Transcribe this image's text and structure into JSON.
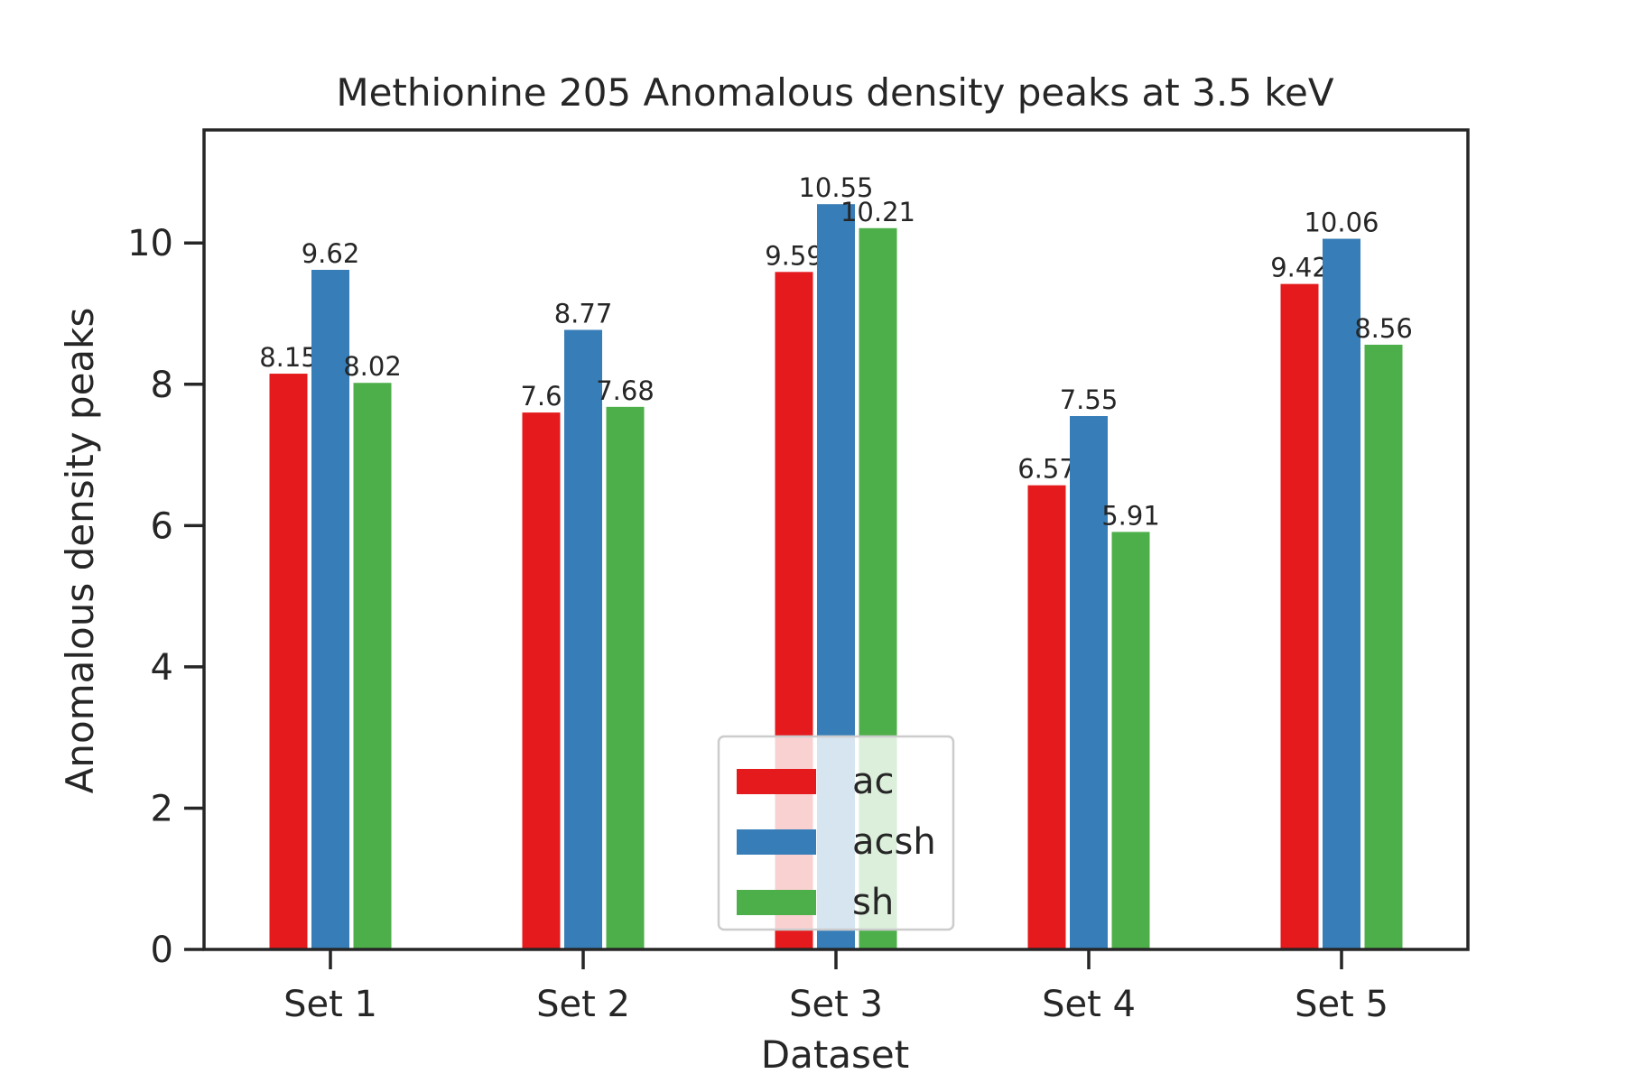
{
  "chart_data": {
    "type": "bar",
    "title": "Methionine 205 Anomalous density peaks at 3.5 keV",
    "xlabel": "Dataset",
    "ylabel": "Anomalous density peaks",
    "categories": [
      "Set 1",
      "Set 2",
      "Set 3",
      "Set 4",
      "Set 5"
    ],
    "series": [
      {
        "name": "ac",
        "color": "#e41a1c",
        "values": [
          8.15,
          7.6,
          9.59,
          6.57,
          9.42
        ],
        "labels": [
          "8.15",
          "7.6",
          "9.59",
          "6.57",
          "9.42"
        ]
      },
      {
        "name": "acsh",
        "color": "#377eb8",
        "values": [
          9.62,
          8.77,
          10.55,
          7.55,
          10.06
        ],
        "labels": [
          "9.62",
          "8.77",
          "10.55",
          "7.55",
          "10.06"
        ]
      },
      {
        "name": "sh",
        "color": "#4daf4a",
        "values": [
          8.02,
          7.68,
          10.21,
          5.91,
          8.56
        ],
        "labels": [
          "8.02",
          "7.68",
          "10.21",
          "5.91",
          "8.56"
        ]
      }
    ],
    "ylim": [
      0,
      11.6
    ],
    "yticks": [
      0,
      2,
      4,
      6,
      8,
      10
    ],
    "ytick_labels": [
      "0",
      "2",
      "4",
      "6",
      "8",
      "10"
    ],
    "grid": false,
    "legend_position": "lower center"
  }
}
